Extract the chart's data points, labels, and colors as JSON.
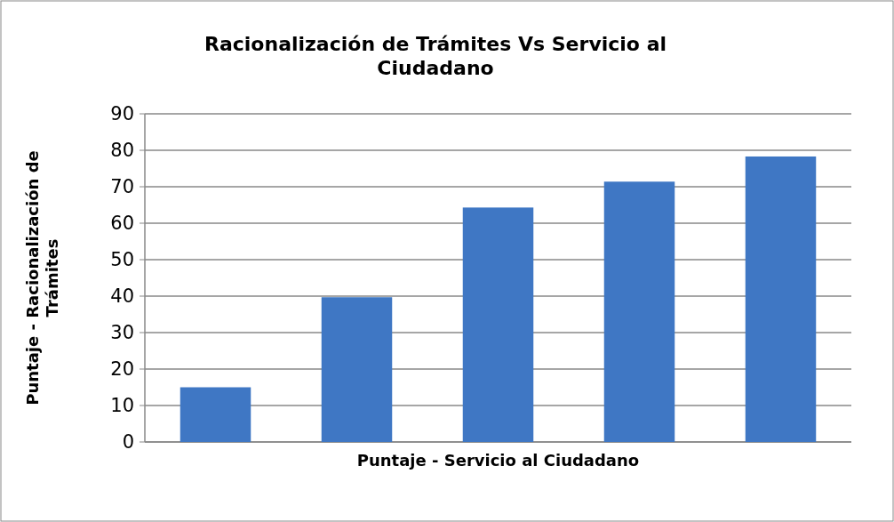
{
  "chart_data": {
    "type": "bar",
    "title": "Racionalización de Trámites Vs Servicio al Ciudadano",
    "xlabel": "Puntaje - Servicio al Ciudadano",
    "ylabel": "Puntaje - Racionalización de Trámites",
    "categories": [
      null,
      null,
      null,
      null,
      null
    ],
    "values": [
      15,
      39.7,
      64.3,
      71.4,
      78.3
    ],
    "color": "#3f77c4",
    "ylim": [
      0,
      90
    ],
    "yticks": [
      0,
      10,
      20,
      30,
      40,
      50,
      60,
      70,
      80,
      90
    ],
    "grid": "y"
  }
}
